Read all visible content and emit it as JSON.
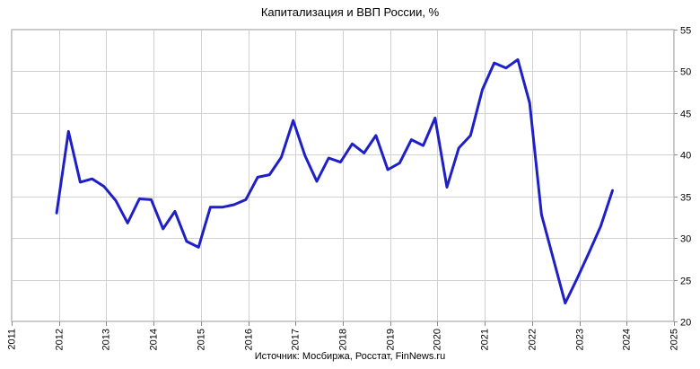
{
  "chart_data": {
    "type": "line",
    "title": "Капитализация и ВВП России, %",
    "source": "Источник: Мосбиржа, Росстат, FinNews.ru",
    "xlabel": "",
    "ylabel": "",
    "xlim": [
      2011,
      2025
    ],
    "ylim": [
      20,
      55
    ],
    "x_ticks": [
      "2011",
      "2012",
      "2013",
      "2014",
      "2015",
      "2016",
      "2017",
      "2018",
      "2019",
      "2020",
      "2021",
      "2022",
      "2023",
      "2024",
      "2025"
    ],
    "y_ticks": [
      "20",
      "25",
      "30",
      "35",
      "40",
      "45",
      "50",
      "55"
    ],
    "grid": true,
    "y_axis_position": "right",
    "line_color": "#1f1fc8",
    "series": [
      {
        "x": [
          2011.95,
          2012.2,
          2012.45,
          2012.7,
          2012.95,
          2013.2,
          2013.45,
          2013.7,
          2013.95,
          2014.2,
          2014.45,
          2014.7,
          2014.95,
          2015.2,
          2015.45,
          2015.7,
          2015.95,
          2016.2,
          2016.45,
          2016.7,
          2016.95,
          2017.2,
          2017.45,
          2017.7,
          2017.95,
          2018.2,
          2018.45,
          2018.7,
          2018.95,
          2019.2,
          2019.45,
          2019.7,
          2019.95,
          2020.2,
          2020.45,
          2020.7,
          2020.95,
          2021.2,
          2021.45,
          2021.7,
          2021.95,
          2022.2,
          2022.45,
          2022.7,
          2022.95,
          2023.2,
          2023.45,
          2023.7
        ],
        "y": [
          33.0,
          42.8,
          36.7,
          37.1,
          36.2,
          34.5,
          31.8,
          34.7,
          34.6,
          31.1,
          33.2,
          29.6,
          28.9,
          33.7,
          33.7,
          34.0,
          34.6,
          37.3,
          37.6,
          39.7,
          44.1,
          39.9,
          36.8,
          39.6,
          39.1,
          41.3,
          40.2,
          42.3,
          38.2,
          39.0,
          41.8,
          41.1,
          44.4,
          36.1,
          40.8,
          42.3,
          47.8,
          51.0,
          50.4,
          51.4,
          46.2,
          32.8,
          27.5,
          22.2,
          25.1,
          28.2,
          31.4,
          35.7
        ]
      }
    ]
  }
}
